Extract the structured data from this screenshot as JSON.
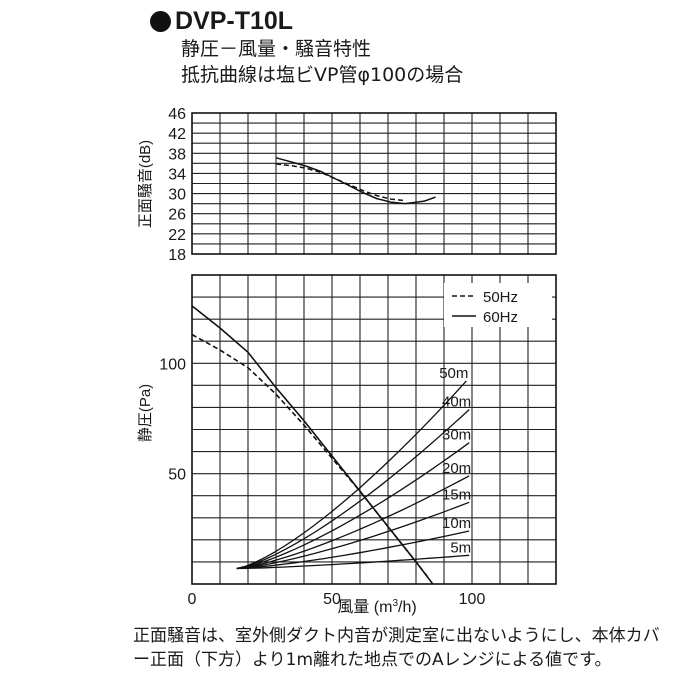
{
  "header": {
    "model": "DVP-T10L",
    "subtitle1": "静圧－風量・騒音特性",
    "subtitle2": "抵抗曲線は塩ビVP管φ100の場合"
  },
  "footnote": "正面騒音は、室外側ダクト内音が測定室に出ないようにし、本体カバー正面（下方）より1m離れた地点でのAレンジによる値です。",
  "chart_data": [
    {
      "type": "line",
      "ylabel": "正面騒音(dB)",
      "ylim": [
        18,
        46
      ],
      "yticks": [
        "18",
        "22",
        "26",
        "30",
        "34",
        "38",
        "42",
        "46"
      ],
      "grid": true,
      "series": [
        {
          "name": "50Hz",
          "style": "dashed",
          "points": [
            [
              30,
              35.9
            ],
            [
              36,
              35.5
            ],
            [
              41,
              35.0
            ],
            [
              46,
              34.2
            ],
            [
              51,
              33.0
            ],
            [
              56,
              31.8
            ],
            [
              61,
              30.6
            ],
            [
              66,
              29.6
            ],
            [
              71,
              28.9
            ],
            [
              76,
              28.6
            ]
          ]
        },
        {
          "name": "60Hz",
          "style": "solid",
          "points": [
            [
              30,
              37.1
            ],
            [
              36,
              36.2
            ],
            [
              41,
              35.4
            ],
            [
              46,
              34.4
            ],
            [
              51,
              33.0
            ],
            [
              56,
              31.6
            ],
            [
              61,
              30.2
            ],
            [
              66,
              29.0
            ],
            [
              71,
              28.3
            ],
            [
              76,
              28.0
            ],
            [
              79,
              28.2
            ],
            [
              83,
              28.5
            ],
            [
              87,
              29.3
            ]
          ]
        }
      ]
    },
    {
      "type": "line",
      "xlabel": "風量 (m3/h)",
      "ylabel": "静圧(Pa)",
      "xlim": [
        0,
        130
      ],
      "ylim": [
        0,
        140
      ],
      "xticks": [
        "0",
        "50",
        "100"
      ],
      "yticks": [
        "50",
        "100"
      ],
      "grid": true,
      "legend": {
        "position": "top-right",
        "entries": [
          {
            "label": "50Hz",
            "style": "dashed"
          },
          {
            "label": "60Hz",
            "style": "solid"
          }
        ]
      },
      "series": [
        {
          "name": "50Hz",
          "style": "dashed",
          "points": [
            [
              0,
              113
            ],
            [
              10,
              106
            ],
            [
              20,
              98
            ],
            [
              30,
              86
            ],
            [
              40,
              72
            ],
            [
              50,
              57
            ],
            [
              60,
              42
            ],
            [
              70,
              26
            ],
            [
              80,
              10
            ],
            [
              84,
              3.5
            ]
          ]
        },
        {
          "name": "60Hz",
          "style": "solid",
          "points": [
            [
              0,
              126
            ],
            [
              10,
              116
            ],
            [
              20,
              105
            ],
            [
              30,
              89
            ],
            [
              40,
              74
            ],
            [
              50,
              58
            ],
            [
              60,
              42
            ],
            [
              70,
              26
            ],
            [
              80,
              10
            ],
            [
              86,
              0
            ]
          ]
        }
      ],
      "resistance_curves": [
        {
          "label": "50m",
          "end": [
            98,
            92
          ]
        },
        {
          "label": "40m",
          "end": [
            99,
            79
          ]
        },
        {
          "label": "30m",
          "end": [
            99,
            64
          ]
        },
        {
          "label": "20m",
          "end": [
            99,
            49
          ]
        },
        {
          "label": "15m",
          "end": [
            99,
            37
          ]
        },
        {
          "label": "10m",
          "end": [
            99,
            24
          ]
        },
        {
          "label": "5m",
          "end": [
            99,
            13
          ]
        }
      ],
      "resistance_origin": [
        16,
        7
      ]
    }
  ]
}
